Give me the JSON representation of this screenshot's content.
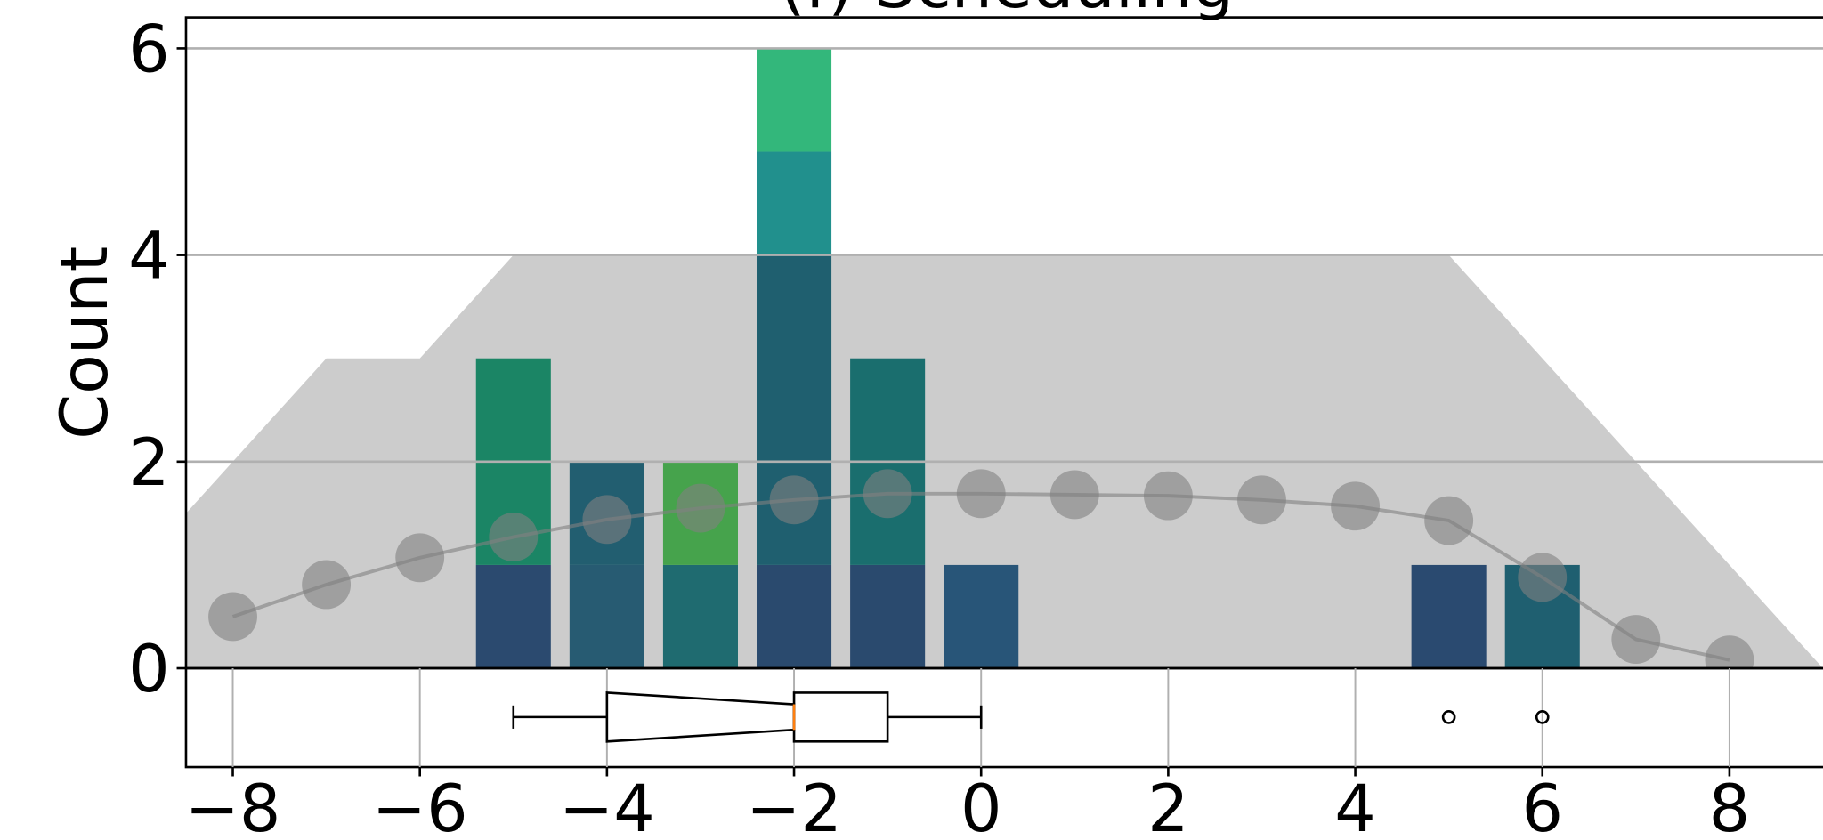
{
  "chart_data": {
    "type": "histogram_box",
    "title": "(f) Scheduling",
    "ylabel": "Count",
    "xlim": [
      -8.5,
      9
    ],
    "ylim": [
      0,
      6.3
    ],
    "xticks": [
      {
        "value": -8,
        "label": "−8"
      },
      {
        "value": -6,
        "label": "−6"
      },
      {
        "value": -4,
        "label": "−4"
      },
      {
        "value": -2,
        "label": "−2"
      },
      0,
      2,
      4,
      6,
      8
    ],
    "yticks": [
      0,
      2,
      4,
      6
    ],
    "grid": true,
    "bar_width": 0.8,
    "stacks": [
      {
        "x": -5,
        "values": [
          1,
          2
        ],
        "colors": [
          "#2b4a6f",
          "#1b8565"
        ]
      },
      {
        "x": -4,
        "values": [
          1,
          1
        ],
        "colors": [
          "#275b72",
          "#225e70"
        ]
      },
      {
        "x": -3,
        "values": [
          1,
          1
        ],
        "colors": [
          "#1f6b70",
          "#46a34c"
        ]
      },
      {
        "x": -2,
        "values": [
          1,
          3,
          1,
          1
        ],
        "colors": [
          "#2a4a6e",
          "#1f5f6f",
          "#21908d",
          "#33b77b"
        ]
      },
      {
        "x": -1,
        "values": [
          1,
          2
        ],
        "colors": [
          "#2a4a6e",
          "#1a6e6e"
        ]
      },
      {
        "x": 0,
        "values": [
          1
        ],
        "colors": [
          "#285578"
        ]
      },
      {
        "x": 5,
        "values": [
          1
        ],
        "colors": [
          "#2a4a70"
        ]
      },
      {
        "x": 6,
        "values": [
          1
        ],
        "colors": [
          "#1f5f70"
        ]
      }
    ],
    "area": {
      "color": "#cccccc",
      "x": [
        -8.5,
        -7,
        -6,
        -5,
        5,
        9
      ],
      "values": [
        1.5,
        3,
        3,
        4,
        4,
        0
      ]
    },
    "points": {
      "color": "#808080",
      "x": [
        -8,
        -7,
        -6,
        -5,
        -4,
        -3,
        -2,
        -1,
        0,
        1,
        2,
        3,
        4,
        5,
        6,
        7,
        8
      ],
      "values": [
        0.5,
        0.81,
        1.07,
        1.27,
        1.44,
        1.55,
        1.63,
        1.69,
        1.69,
        1.68,
        1.67,
        1.63,
        1.57,
        1.43,
        0.88,
        0.28,
        0.08
      ]
    },
    "box": {
      "whisker_low": -5,
      "q1": -4,
      "median": -2,
      "q3": -1,
      "whisker_high": 0,
      "fliers": [
        5,
        6
      ],
      "median_color": "#ff7f0e"
    }
  }
}
